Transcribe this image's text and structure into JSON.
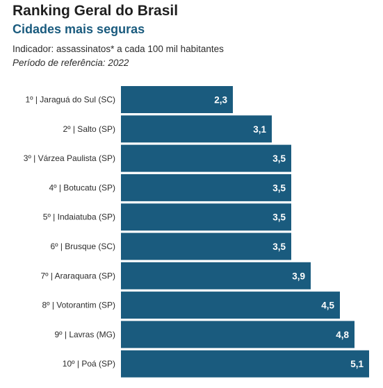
{
  "header": {
    "title": "Ranking Geral do Brasil",
    "subtitle": "Cidades mais seguras",
    "indicator": "Indicador: assassinatos* a cada 100 mil habitantes",
    "period": "Período de referência: 2022"
  },
  "colors": {
    "bar": "#1a5b7e",
    "subtitle": "#1a5b7e",
    "value_text": "#ffffff"
  },
  "chart_data": {
    "type": "bar",
    "orientation": "horizontal",
    "categories": [
      "1º | Jaraguá do Sul (SC)",
      "2º | Salto (SP)",
      "3º | Várzea Paulista (SP)",
      "4º | Botucatu (SP)",
      "5º | Indaiatuba (SP)",
      "6º | Brusque (SC)",
      "7º | Araraquara (SP)",
      "8º | Votorantim (SP)",
      "9º | Lavras (MG)",
      "10º | Poá (SP)"
    ],
    "values": [
      2.3,
      3.1,
      3.5,
      3.5,
      3.5,
      3.5,
      3.9,
      4.5,
      4.8,
      5.1
    ],
    "value_labels": [
      "2,3",
      "3,1",
      "3,5",
      "3,5",
      "3,5",
      "3,5",
      "3,9",
      "4,5",
      "4,8",
      "5,1"
    ],
    "xlim": [
      0,
      5.1
    ],
    "grid": false,
    "legend": "none"
  }
}
